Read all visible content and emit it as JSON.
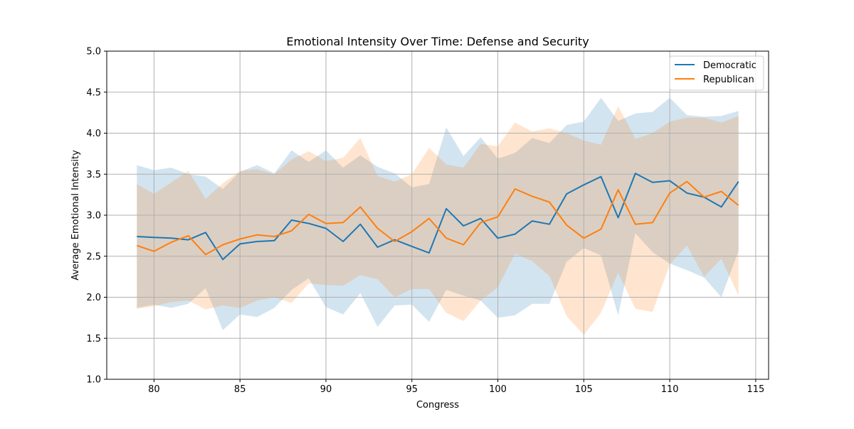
{
  "chart_data": {
    "type": "line",
    "title": "Emotional Intensity Over Time: Defense and Security",
    "xlabel": "Congress",
    "ylabel": "Average Emotional Intensity",
    "xlim": [
      77.25,
      115.75
    ],
    "ylim": [
      1.0,
      5.0
    ],
    "xticks": [
      80,
      85,
      90,
      95,
      100,
      105,
      110,
      115
    ],
    "yticks": [
      1.0,
      1.5,
      2.0,
      2.5,
      3.0,
      3.5,
      4.0,
      4.5,
      5.0
    ],
    "xtick_labels": [
      "80",
      "85",
      "90",
      "95",
      "100",
      "105",
      "110",
      "115"
    ],
    "ytick_labels": [
      "1.0",
      "1.5",
      "2.0",
      "2.5",
      "3.0",
      "3.5",
      "4.0",
      "4.5",
      "5.0"
    ],
    "grid": true,
    "legend_position": "top-right",
    "x": [
      79,
      80,
      81,
      82,
      83,
      84,
      85,
      86,
      87,
      88,
      89,
      90,
      91,
      92,
      93,
      94,
      95,
      96,
      97,
      98,
      99,
      100,
      101,
      102,
      103,
      104,
      105,
      106,
      107,
      108,
      109,
      110,
      111,
      112,
      113,
      114
    ],
    "series": [
      {
        "name": "Democratic",
        "color": "#1f77b4",
        "values": [
          2.74,
          2.73,
          2.72,
          2.7,
          2.79,
          2.46,
          2.65,
          2.68,
          2.69,
          2.94,
          2.9,
          2.84,
          2.68,
          2.89,
          2.61,
          2.7,
          2.62,
          2.54,
          3.08,
          2.87,
          2.96,
          2.72,
          2.77,
          2.93,
          2.89,
          3.26,
          3.37,
          3.47,
          2.97,
          3.51,
          3.4,
          3.42,
          3.27,
          3.22,
          3.1,
          3.41
        ],
        "band_upper": [
          3.61,
          3.55,
          3.58,
          3.5,
          3.47,
          3.32,
          3.53,
          3.61,
          3.51,
          3.79,
          3.65,
          3.79,
          3.58,
          3.73,
          3.59,
          3.51,
          3.34,
          3.38,
          4.07,
          3.72,
          3.95,
          3.69,
          3.76,
          3.94,
          3.88,
          4.1,
          4.14,
          4.43,
          4.15,
          4.24,
          4.26,
          4.43,
          4.22,
          4.2,
          4.21,
          4.27
        ],
        "band_lower": [
          1.87,
          1.91,
          1.87,
          1.92,
          2.11,
          1.6,
          1.79,
          1.76,
          1.87,
          2.09,
          2.23,
          1.88,
          1.79,
          2.05,
          1.64,
          1.9,
          1.91,
          1.7,
          2.09,
          2.02,
          1.96,
          1.75,
          1.78,
          1.92,
          1.92,
          2.43,
          2.6,
          2.51,
          1.78,
          2.78,
          2.55,
          2.41,
          2.33,
          2.24,
          2.0,
          2.56
        ]
      },
      {
        "name": "Republican",
        "color": "#ff7f0e",
        "values": [
          2.63,
          2.56,
          2.67,
          2.75,
          2.52,
          2.64,
          2.71,
          2.76,
          2.74,
          2.81,
          3.01,
          2.9,
          2.91,
          3.1,
          2.84,
          2.68,
          2.8,
          2.96,
          2.72,
          2.64,
          2.91,
          2.98,
          3.32,
          3.23,
          3.16,
          2.88,
          2.72,
          2.83,
          3.31,
          2.89,
          2.91,
          3.27,
          3.41,
          3.22,
          3.29,
          3.12
        ],
        "band_upper": [
          3.38,
          3.26,
          3.4,
          3.54,
          3.2,
          3.39,
          3.54,
          3.56,
          3.5,
          3.68,
          3.78,
          3.66,
          3.7,
          3.94,
          3.48,
          3.41,
          3.5,
          3.82,
          3.62,
          3.58,
          3.87,
          3.84,
          4.13,
          4.02,
          4.06,
          4.0,
          3.91,
          3.86,
          4.33,
          3.93,
          4.0,
          4.14,
          4.19,
          4.19,
          4.13,
          4.21
        ],
        "band_lower": [
          1.86,
          1.89,
          1.94,
          1.96,
          1.85,
          1.9,
          1.87,
          1.96,
          2.0,
          1.93,
          2.17,
          2.15,
          2.14,
          2.27,
          2.22,
          2.0,
          2.1,
          2.1,
          1.81,
          1.71,
          1.96,
          2.12,
          2.53,
          2.44,
          2.26,
          1.77,
          1.54,
          1.81,
          2.3,
          1.86,
          1.82,
          2.4,
          2.63,
          2.25,
          2.47,
          2.02
        ]
      }
    ]
  }
}
